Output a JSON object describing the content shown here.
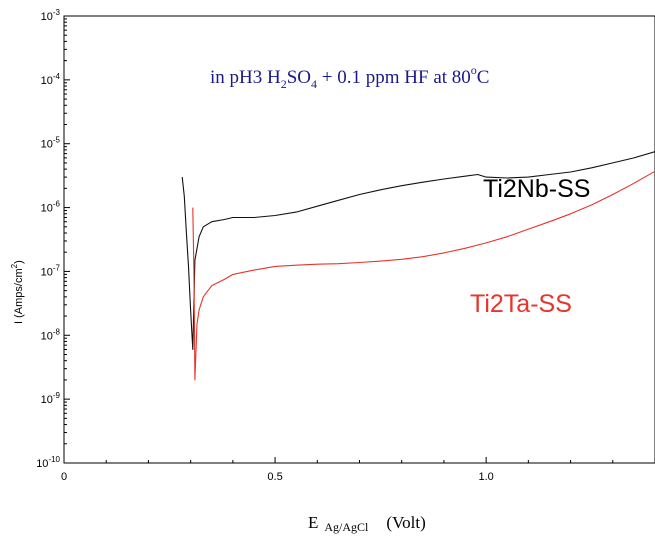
{
  "chart_data": {
    "type": "line",
    "annotation": {
      "prefix": "in pH3 H",
      "sub1": "2",
      "mid": "SO",
      "sub2": "4",
      "rest": " + 0.1 ppm HF at 80",
      "sup": "o",
      "suffix": "C",
      "color": "#1a1a8c"
    },
    "xlabel": {
      "main": "E",
      "sub": "Ag/AgCl",
      "unit": "(Volt)"
    },
    "ylabel": {
      "main": "I (Amps/cm",
      "sup": "2",
      "close": ")"
    },
    "xlim": [
      0,
      1.4
    ],
    "ylim_log10": [
      -10,
      -3
    ],
    "y_scale": "log",
    "x_ticks": [
      {
        "value": 0,
        "label": "0"
      },
      {
        "value": 0.5,
        "label": "0.5"
      },
      {
        "value": 1.0,
        "label": "1.0"
      }
    ],
    "y_ticks": [
      {
        "exp": -3,
        "base": "10",
        "sup": "-3"
      },
      {
        "exp": -4,
        "base": "10",
        "sup": "-4"
      },
      {
        "exp": -5,
        "base": "10",
        "sup": "-5"
      },
      {
        "exp": -6,
        "base": "10",
        "sup": "-6"
      },
      {
        "exp": -7,
        "base": "10",
        "sup": "-7"
      },
      {
        "exp": -8,
        "base": "10",
        "sup": "-8"
      },
      {
        "exp": -9,
        "base": "10",
        "sup": "-9"
      },
      {
        "exp": -10,
        "base": "10",
        "sup": "-10"
      }
    ],
    "grid": false,
    "series": [
      {
        "name": "Ti2Nb-SS",
        "color": "#111111",
        "label_color": "#000000",
        "points": [
          [
            0.28,
            3e-06
          ],
          [
            0.285,
            1.5e-06
          ],
          [
            0.29,
            4e-07
          ],
          [
            0.295,
            1.2e-07
          ],
          [
            0.3,
            2.5e-08
          ],
          [
            0.305,
            6e-09
          ],
          [
            0.31,
            1.5e-07
          ],
          [
            0.32,
            3.5e-07
          ],
          [
            0.33,
            5e-07
          ],
          [
            0.35,
            6e-07
          ],
          [
            0.38,
            6.5e-07
          ],
          [
            0.4,
            7e-07
          ],
          [
            0.45,
            7e-07
          ],
          [
            0.5,
            7.5e-07
          ],
          [
            0.55,
            8.5e-07
          ],
          [
            0.6,
            1.05e-06
          ],
          [
            0.65,
            1.3e-06
          ],
          [
            0.7,
            1.6e-06
          ],
          [
            0.75,
            1.9e-06
          ],
          [
            0.8,
            2.2e-06
          ],
          [
            0.85,
            2.5e-06
          ],
          [
            0.9,
            2.8e-06
          ],
          [
            0.95,
            3.1e-06
          ],
          [
            0.98,
            3.3e-06
          ],
          [
            1.0,
            3e-06
          ],
          [
            1.05,
            2.9e-06
          ],
          [
            1.1,
            3e-06
          ],
          [
            1.15,
            3.3e-06
          ],
          [
            1.2,
            3.6e-06
          ],
          [
            1.25,
            4.2e-06
          ],
          [
            1.3,
            5e-06
          ],
          [
            1.35,
            6e-06
          ],
          [
            1.4,
            7.5e-06
          ]
        ]
      },
      {
        "name": "Ti2Ta-SS",
        "color": "#e8342a",
        "label_color": "#e8342a",
        "points": [
          [
            0.305,
            1e-06
          ],
          [
            0.308,
            8e-08
          ],
          [
            0.31,
            2e-09
          ],
          [
            0.315,
            1.5e-08
          ],
          [
            0.32,
            2.5e-08
          ],
          [
            0.33,
            4e-08
          ],
          [
            0.35,
            6e-08
          ],
          [
            0.38,
            7.5e-08
          ],
          [
            0.4,
            9e-08
          ],
          [
            0.45,
            1.05e-07
          ],
          [
            0.5,
            1.2e-07
          ],
          [
            0.55,
            1.25e-07
          ],
          [
            0.6,
            1.3e-07
          ],
          [
            0.65,
            1.32e-07
          ],
          [
            0.7,
            1.38e-07
          ],
          [
            0.75,
            1.45e-07
          ],
          [
            0.8,
            1.55e-07
          ],
          [
            0.85,
            1.7e-07
          ],
          [
            0.9,
            1.95e-07
          ],
          [
            0.95,
            2.3e-07
          ],
          [
            1.0,
            2.8e-07
          ],
          [
            1.05,
            3.5e-07
          ],
          [
            1.1,
            4.6e-07
          ],
          [
            1.15,
            6e-07
          ],
          [
            1.2,
            8e-07
          ],
          [
            1.25,
            1.1e-06
          ],
          [
            1.3,
            1.6e-06
          ],
          [
            1.35,
            2.4e-06
          ],
          [
            1.4,
            3.7e-06
          ]
        ]
      }
    ]
  }
}
